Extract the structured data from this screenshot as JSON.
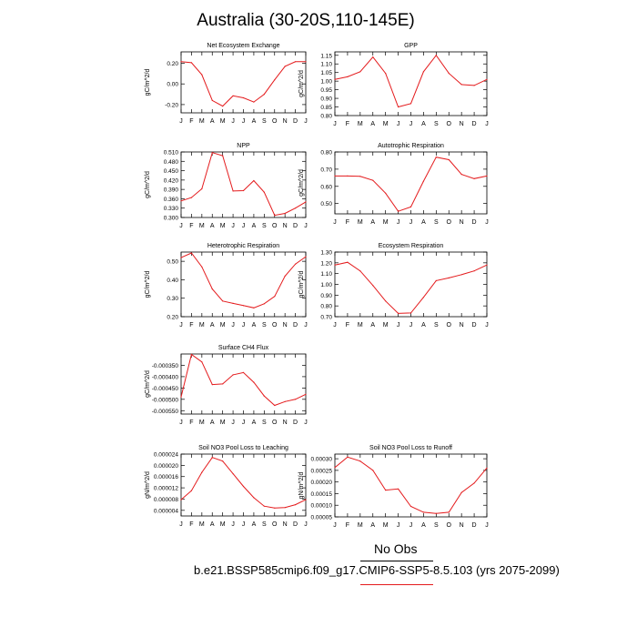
{
  "figure_title": "Australia (30-20S,110-145E)",
  "colors": {
    "line": "#e41a1c",
    "axis": "#000000",
    "obs_line": "#000000"
  },
  "legend": {
    "obs_label": "No Obs",
    "case_label": "b.e21.BSSP585cmip6.f09_g17.CMIP6-SSP5-8.5.103 (yrs 2075-2099)"
  },
  "chart_data": [
    {
      "type": "line",
      "title": "Net Ecosystem Exchange",
      "ylabel": "gC/m^2/d",
      "x": [
        "J",
        "F",
        "M",
        "A",
        "M",
        "J",
        "J",
        "A",
        "S",
        "O",
        "N",
        "D",
        "J"
      ],
      "ylim": [
        -0.28,
        0.31
      ],
      "yticks": [
        0.2,
        0.0,
        -0.2
      ],
      "ytick_labels": [
        "0.20",
        "0.00",
        "-0.20"
      ],
      "series": [
        {
          "values": [
            0.215,
            0.205,
            0.09,
            -0.16,
            -0.215,
            -0.115,
            -0.135,
            -0.175,
            -0.1,
            0.04,
            0.17,
            0.215,
            0.215
          ]
        }
      ]
    },
    {
      "type": "line",
      "title": "GPP",
      "ylabel": "gC/m^2/d",
      "x": [
        "J",
        "F",
        "M",
        "A",
        "M",
        "J",
        "J",
        "A",
        "S",
        "O",
        "N",
        "D",
        "J"
      ],
      "ylim": [
        0.8,
        1.17
      ],
      "yticks": [
        0.8,
        0.85,
        0.9,
        0.95,
        1.0,
        1.05,
        1.1,
        1.15
      ],
      "ytick_labels": [
        "0.80",
        "0.85",
        "0.90",
        "0.95",
        "1.00",
        "1.05",
        "1.10",
        "1.15"
      ],
      "series": [
        {
          "values": [
            1.01,
            1.025,
            1.055,
            1.14,
            1.045,
            0.85,
            0.87,
            1.055,
            1.15,
            1.045,
            0.98,
            0.975,
            1.01
          ]
        }
      ]
    },
    {
      "type": "line",
      "title": "NPP",
      "ylabel": "gC/m^2/d",
      "x": [
        "J",
        "F",
        "M",
        "A",
        "M",
        "J",
        "J",
        "A",
        "S",
        "O",
        "N",
        "D",
        "J"
      ],
      "ylim": [
        0.3,
        0.51
      ],
      "yticks": [
        0.3,
        0.33,
        0.36,
        0.39,
        0.42,
        0.45,
        0.48,
        0.51
      ],
      "ytick_labels": [
        "0.300",
        "0.330",
        "0.360",
        "0.390",
        "0.420",
        "0.450",
        "0.480",
        "0.510"
      ],
      "series": [
        {
          "values": [
            0.353,
            0.364,
            0.392,
            0.508,
            0.498,
            0.385,
            0.386,
            0.418,
            0.381,
            0.307,
            0.313,
            0.33,
            0.35
          ]
        }
      ]
    },
    {
      "type": "line",
      "title": "Autotrophic Respiration",
      "ylabel": "gC/m^2/d",
      "x": [
        "J",
        "F",
        "M",
        "A",
        "M",
        "J",
        "J",
        "A",
        "S",
        "O",
        "N",
        "D",
        "J"
      ],
      "ylim": [
        0.44,
        0.8
      ],
      "yticks": [
        0.5,
        0.6,
        0.7,
        0.8
      ],
      "ytick_labels": [
        "0.50",
        "0.60",
        "0.70",
        "0.80"
      ],
      "series": [
        {
          "values": [
            0.66,
            0.66,
            0.658,
            0.635,
            0.56,
            0.455,
            0.48,
            0.63,
            0.77,
            0.755,
            0.67,
            0.645,
            0.66
          ]
        }
      ]
    },
    {
      "type": "line",
      "title": "Heterotrophic Respiration",
      "ylabel": "gC/m^2/d",
      "x": [
        "J",
        "F",
        "M",
        "A",
        "M",
        "J",
        "J",
        "A",
        "S",
        "O",
        "N",
        "D",
        "J"
      ],
      "ylim": [
        0.2,
        0.55
      ],
      "yticks": [
        0.2,
        0.3,
        0.4,
        0.5
      ],
      "ytick_labels": [
        "0.20",
        "0.30",
        "0.40",
        "0.50"
      ],
      "series": [
        {
          "values": [
            0.52,
            0.545,
            0.47,
            0.35,
            0.285,
            0.272,
            0.26,
            0.248,
            0.27,
            0.31,
            0.42,
            0.485,
            0.525
          ]
        }
      ]
    },
    {
      "type": "line",
      "title": "Ecosystem Respiration",
      "ylabel": "gC/m^2/d",
      "x": [
        "J",
        "F",
        "M",
        "A",
        "M",
        "J",
        "J",
        "A",
        "S",
        "O",
        "N",
        "D",
        "J"
      ],
      "ylim": [
        0.7,
        1.3
      ],
      "yticks": [
        0.7,
        0.8,
        0.9,
        1.0,
        1.1,
        1.2,
        1.3
      ],
      "ytick_labels": [
        "0.70",
        "0.80",
        "0.90",
        "1.00",
        "1.10",
        "1.20",
        "1.30"
      ],
      "series": [
        {
          "values": [
            1.18,
            1.205,
            1.125,
            0.99,
            0.845,
            0.73,
            0.735,
            0.88,
            1.035,
            1.06,
            1.09,
            1.125,
            1.18
          ]
        }
      ]
    },
    {
      "type": "line",
      "title": "Surface CH4 Flux",
      "ylabel": "gC/m^2/d",
      "x": [
        "J",
        "F",
        "M",
        "A",
        "M",
        "J",
        "J",
        "A",
        "S",
        "O",
        "N",
        "D",
        "J"
      ],
      "ylim": [
        -0.000565,
        -0.0003
      ],
      "yticks": [
        -0.00035,
        -0.0004,
        -0.00045,
        -0.0005,
        -0.00055
      ],
      "ytick_labels": [
        "-0.000350",
        "-0.000400",
        "-0.000450",
        "-0.000500",
        "-0.000550"
      ],
      "series": [
        {
          "values": [
            -0.00049,
            -0.000302,
            -0.000335,
            -0.000435,
            -0.000432,
            -0.000392,
            -0.000382,
            -0.000425,
            -0.000485,
            -0.000527,
            -0.00051,
            -0.0005,
            -0.000478
          ]
        }
      ]
    },
    {
      "type": "line",
      "title": "Soil NO3 Pool Loss to Leaching",
      "ylabel": "gN/m^2/d",
      "x": [
        "J",
        "F",
        "M",
        "A",
        "M",
        "J",
        "J",
        "A",
        "S",
        "O",
        "N",
        "D",
        "J"
      ],
      "ylim": [
        2e-06,
        2.4e-05
      ],
      "yticks": [
        4e-06,
        8e-06,
        1.2e-05,
        1.6e-05,
        2e-05,
        2.4e-05
      ],
      "ytick_labels": [
        "0.000004",
        "0.000008",
        "0.000012",
        "0.000016",
        "0.000020",
        "0.000024"
      ],
      "series": [
        {
          "values": [
            7.8e-06,
            1.1e-05,
            1.75e-05,
            2.28e-05,
            2.15e-05,
            1.7e-05,
            1.25e-05,
            8.5e-06,
            5.5e-06,
            4.8e-06,
            5e-06,
            6e-06,
            7.8e-06
          ]
        }
      ]
    },
    {
      "type": "line",
      "title": "Soil NO3 Pool Loss to Runoff",
      "ylabel": "gN/m^2/d",
      "x": [
        "J",
        "F",
        "M",
        "A",
        "M",
        "J",
        "J",
        "A",
        "S",
        "O",
        "N",
        "D",
        "J"
      ],
      "ylim": [
        5e-05,
        0.00032
      ],
      "yticks": [
        5e-05,
        0.0001,
        0.00015,
        0.0002,
        0.00025,
        0.0003
      ],
      "ytick_labels": [
        "0.00005",
        "0.00010",
        "0.00015",
        "0.00020",
        "0.00025",
        "0.00030"
      ],
      "series": [
        {
          "values": [
            0.000262,
            0.000307,
            0.00029,
            0.00025,
            0.000165,
            0.00017,
            9.5e-05,
            7e-05,
            6.5e-05,
            7e-05,
            0.000155,
            0.000195,
            0.00026
          ]
        }
      ]
    }
  ]
}
